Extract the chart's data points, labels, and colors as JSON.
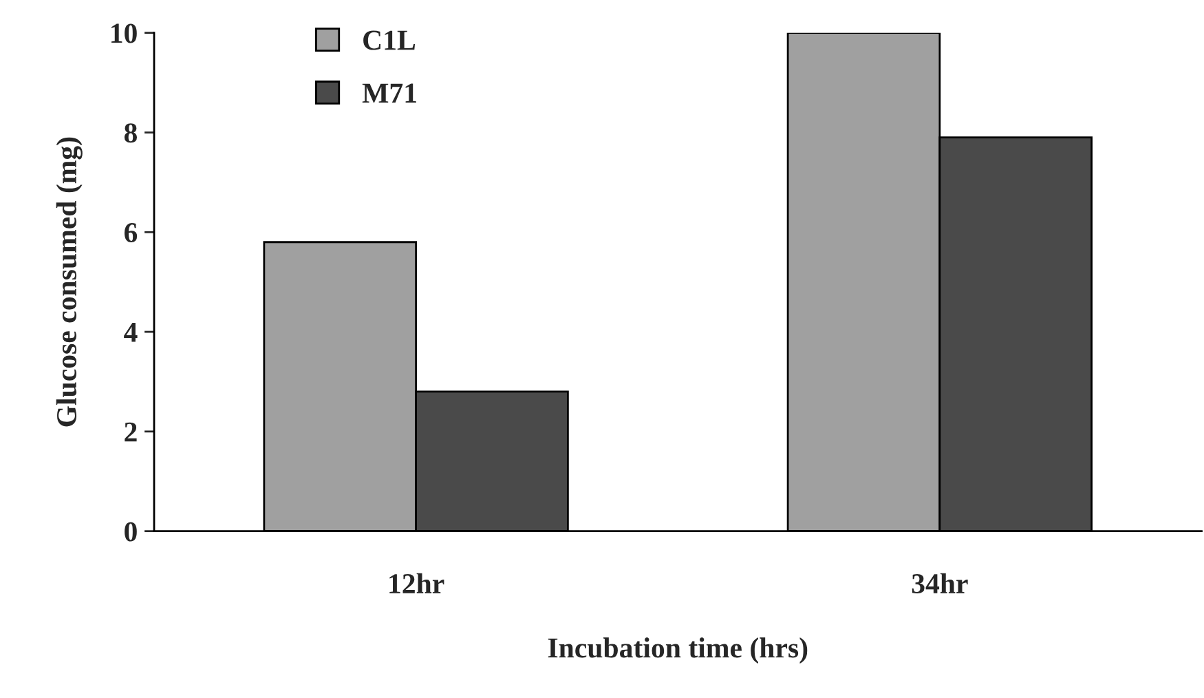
{
  "chart_data": {
    "type": "bar",
    "xlabel": "Incubation time (hrs)",
    "ylabel": "Glucose consumed (mg)",
    "categories": [
      "12hr",
      "34hr"
    ],
    "series": [
      {
        "name": "C1L",
        "color": "#a0a0a0",
        "values": [
          5.8,
          10.0
        ]
      },
      {
        "name": "M71",
        "color": "#4a4a4a",
        "values": [
          2.8,
          7.9
        ]
      }
    ],
    "ylim": [
      0,
      10
    ],
    "yticks": [
      0,
      2,
      4,
      6,
      8,
      10
    ],
    "grid": false,
    "legend": "top left"
  }
}
